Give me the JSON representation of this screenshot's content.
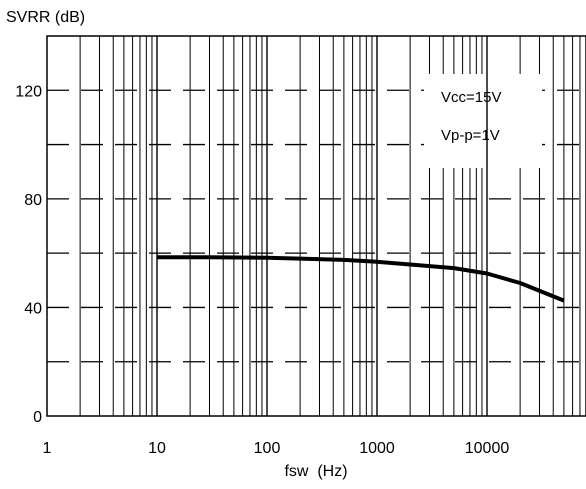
{
  "chart_data": {
    "type": "line",
    "ylabel": "SVRR (dB)",
    "xlabel": "fsw  (Hz)",
    "xscale": "log",
    "xlim": [
      1,
      100000
    ],
    "ylim": [
      0,
      140
    ],
    "x_ticks": [
      1,
      10,
      100,
      1000,
      10000
    ],
    "x_tick_labels": [
      "1",
      "10",
      "100",
      "1000",
      "10000"
    ],
    "y_ticks": [
      0,
      40,
      80,
      120
    ],
    "y_tick_labels": [
      "0",
      "40",
      "80",
      "120"
    ],
    "grid": true,
    "annotations": [
      "Vcc=15V",
      "Vp-p=1V"
    ],
    "series": [
      {
        "color": "#000000",
        "x": [
          10,
          30,
          100,
          200,
          500,
          1000,
          2000,
          5000,
          10000,
          20000,
          50000
        ],
        "y": [
          58.5,
          58.5,
          58.3,
          58.0,
          57.5,
          56.8,
          55.8,
          54.5,
          52.5,
          49.0,
          42.5
        ]
      }
    ]
  }
}
